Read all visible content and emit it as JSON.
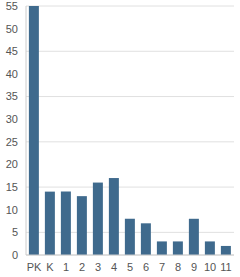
{
  "chart_data": {
    "type": "bar",
    "categories": [
      "PK",
      "K",
      "1",
      "2",
      "3",
      "4",
      "5",
      "6",
      "7",
      "8",
      "9",
      "10",
      "11"
    ],
    "values": [
      55,
      14,
      14,
      13,
      16,
      17,
      8,
      7,
      3,
      3,
      8,
      3,
      2
    ],
    "color": "#3f6a8d",
    "ylim": [
      0,
      55
    ],
    "yticks": [
      0,
      5,
      10,
      15,
      20,
      25,
      30,
      35,
      40,
      45,
      50,
      55
    ],
    "grid": true
  }
}
